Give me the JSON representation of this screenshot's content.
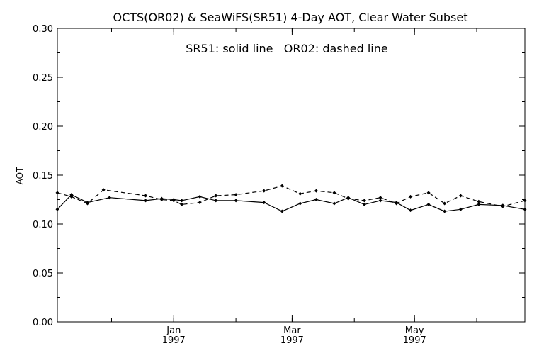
{
  "chart_data": {
    "type": "line",
    "title": "OCTS(OR02) & SeaWiFS(SR51) 4-Day AOT, Clear Water Subset",
    "annotation": "SR51: solid line   OR02: dashed line",
    "ylabel": "AOT",
    "xlabel": "",
    "xlim": [
      "1996-11-04",
      "1997-06-25"
    ],
    "ylim": [
      0.0,
      0.3
    ],
    "y_ticks": [
      "0.00",
      "0.05",
      "0.10",
      "0.15",
      "0.20",
      "0.25",
      "0.30"
    ],
    "x_ticks": [
      {
        "date": "1997-01-01",
        "month": "Jan",
        "year": "1997"
      },
      {
        "date": "1997-03-01",
        "month": "Mar",
        "year": "1997"
      },
      {
        "date": "1997-05-01",
        "month": "May",
        "year": "1997"
      }
    ],
    "grid": false,
    "series": [
      {
        "name": "SR51",
        "style": "solid",
        "color": "#000000",
        "points": [
          [
            "1996-11-04",
            0.115
          ],
          [
            "1996-11-11",
            0.13
          ],
          [
            "1996-11-19",
            0.122
          ],
          [
            "1996-11-30",
            0.127
          ],
          [
            "1996-12-18",
            0.124
          ],
          [
            "1996-12-26",
            0.126
          ],
          [
            "1997-01-01",
            0.125
          ],
          [
            "1997-01-05",
            0.124
          ],
          [
            "1997-01-14",
            0.128
          ],
          [
            "1997-01-22",
            0.124
          ],
          [
            "1997-02-01",
            0.124
          ],
          [
            "1997-02-15",
            0.122
          ],
          [
            "1997-02-24",
            0.113
          ],
          [
            "1997-03-05",
            0.121
          ],
          [
            "1997-03-13",
            0.125
          ],
          [
            "1997-03-22",
            0.121
          ],
          [
            "1997-03-29",
            0.127
          ],
          [
            "1997-04-06",
            0.12
          ],
          [
            "1997-04-14",
            0.124
          ],
          [
            "1997-04-22",
            0.122
          ],
          [
            "1997-04-29",
            0.114
          ],
          [
            "1997-05-08",
            0.12
          ],
          [
            "1997-05-16",
            0.113
          ],
          [
            "1997-05-24",
            0.115
          ],
          [
            "1997-06-02",
            0.12
          ],
          [
            "1997-06-14",
            0.119
          ],
          [
            "1997-06-25",
            0.115
          ]
        ]
      },
      {
        "name": "OR02",
        "style": "dashed",
        "color": "#000000",
        "points": [
          [
            "1996-11-04",
            0.132
          ],
          [
            "1996-11-11",
            0.128
          ],
          [
            "1996-11-19",
            0.121
          ],
          [
            "1996-11-27",
            0.135
          ],
          [
            "1996-12-18",
            0.129
          ],
          [
            "1996-12-26",
            0.125
          ],
          [
            "1997-01-01",
            0.124
          ],
          [
            "1997-01-05",
            0.12
          ],
          [
            "1997-01-14",
            0.122
          ],
          [
            "1997-01-22",
            0.129
          ],
          [
            "1997-02-01",
            0.13
          ],
          [
            "1997-02-15",
            0.134
          ],
          [
            "1997-02-24",
            0.139
          ],
          [
            "1997-03-05",
            0.131
          ],
          [
            "1997-03-13",
            0.134
          ],
          [
            "1997-03-22",
            0.132
          ],
          [
            "1997-03-29",
            0.126
          ],
          [
            "1997-04-06",
            0.124
          ],
          [
            "1997-04-14",
            0.127
          ],
          [
            "1997-04-22",
            0.121
          ],
          [
            "1997-04-29",
            0.128
          ],
          [
            "1997-05-08",
            0.132
          ],
          [
            "1997-05-16",
            0.121
          ],
          [
            "1997-05-24",
            0.129
          ],
          [
            "1997-06-02",
            0.123
          ],
          [
            "1997-06-14",
            0.118
          ],
          [
            "1997-06-25",
            0.124
          ]
        ]
      }
    ]
  }
}
